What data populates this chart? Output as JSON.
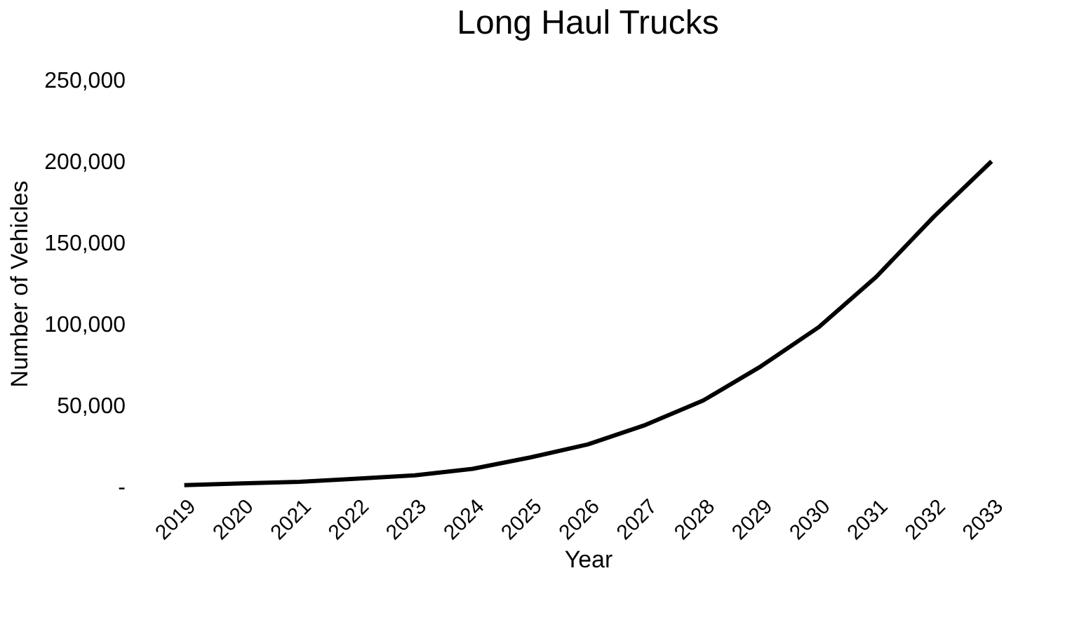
{
  "chart_data": {
    "type": "line",
    "title": "Long Haul Trucks",
    "xlabel": "Year",
    "ylabel": "Number of Vehicles",
    "categories": [
      "2019",
      "2020",
      "2021",
      "2022",
      "2023",
      "2024",
      "2025",
      "2026",
      "2027",
      "2028",
      "2029",
      "2030",
      "2031",
      "2032",
      "2033"
    ],
    "series": [
      {
        "color": "#000000",
        "values": [
          1000,
          2000,
          3000,
          5000,
          7000,
          11000,
          18000,
          26000,
          38000,
          53000,
          74000,
          98000,
          129000,
          166000,
          200000
        ]
      }
    ],
    "ylim": [
      0,
      250000
    ],
    "yticks": [
      {
        "value": 0,
        "label": "-"
      },
      {
        "value": 50000,
        "label": "50,000"
      },
      {
        "value": 100000,
        "label": "100,000"
      },
      {
        "value": 150000,
        "label": "150,000"
      },
      {
        "value": 200000,
        "label": "200,000"
      },
      {
        "value": 250000,
        "label": "250,000"
      }
    ],
    "grid": false,
    "legend": false,
    "marker": "none",
    "line_style": "solid"
  }
}
